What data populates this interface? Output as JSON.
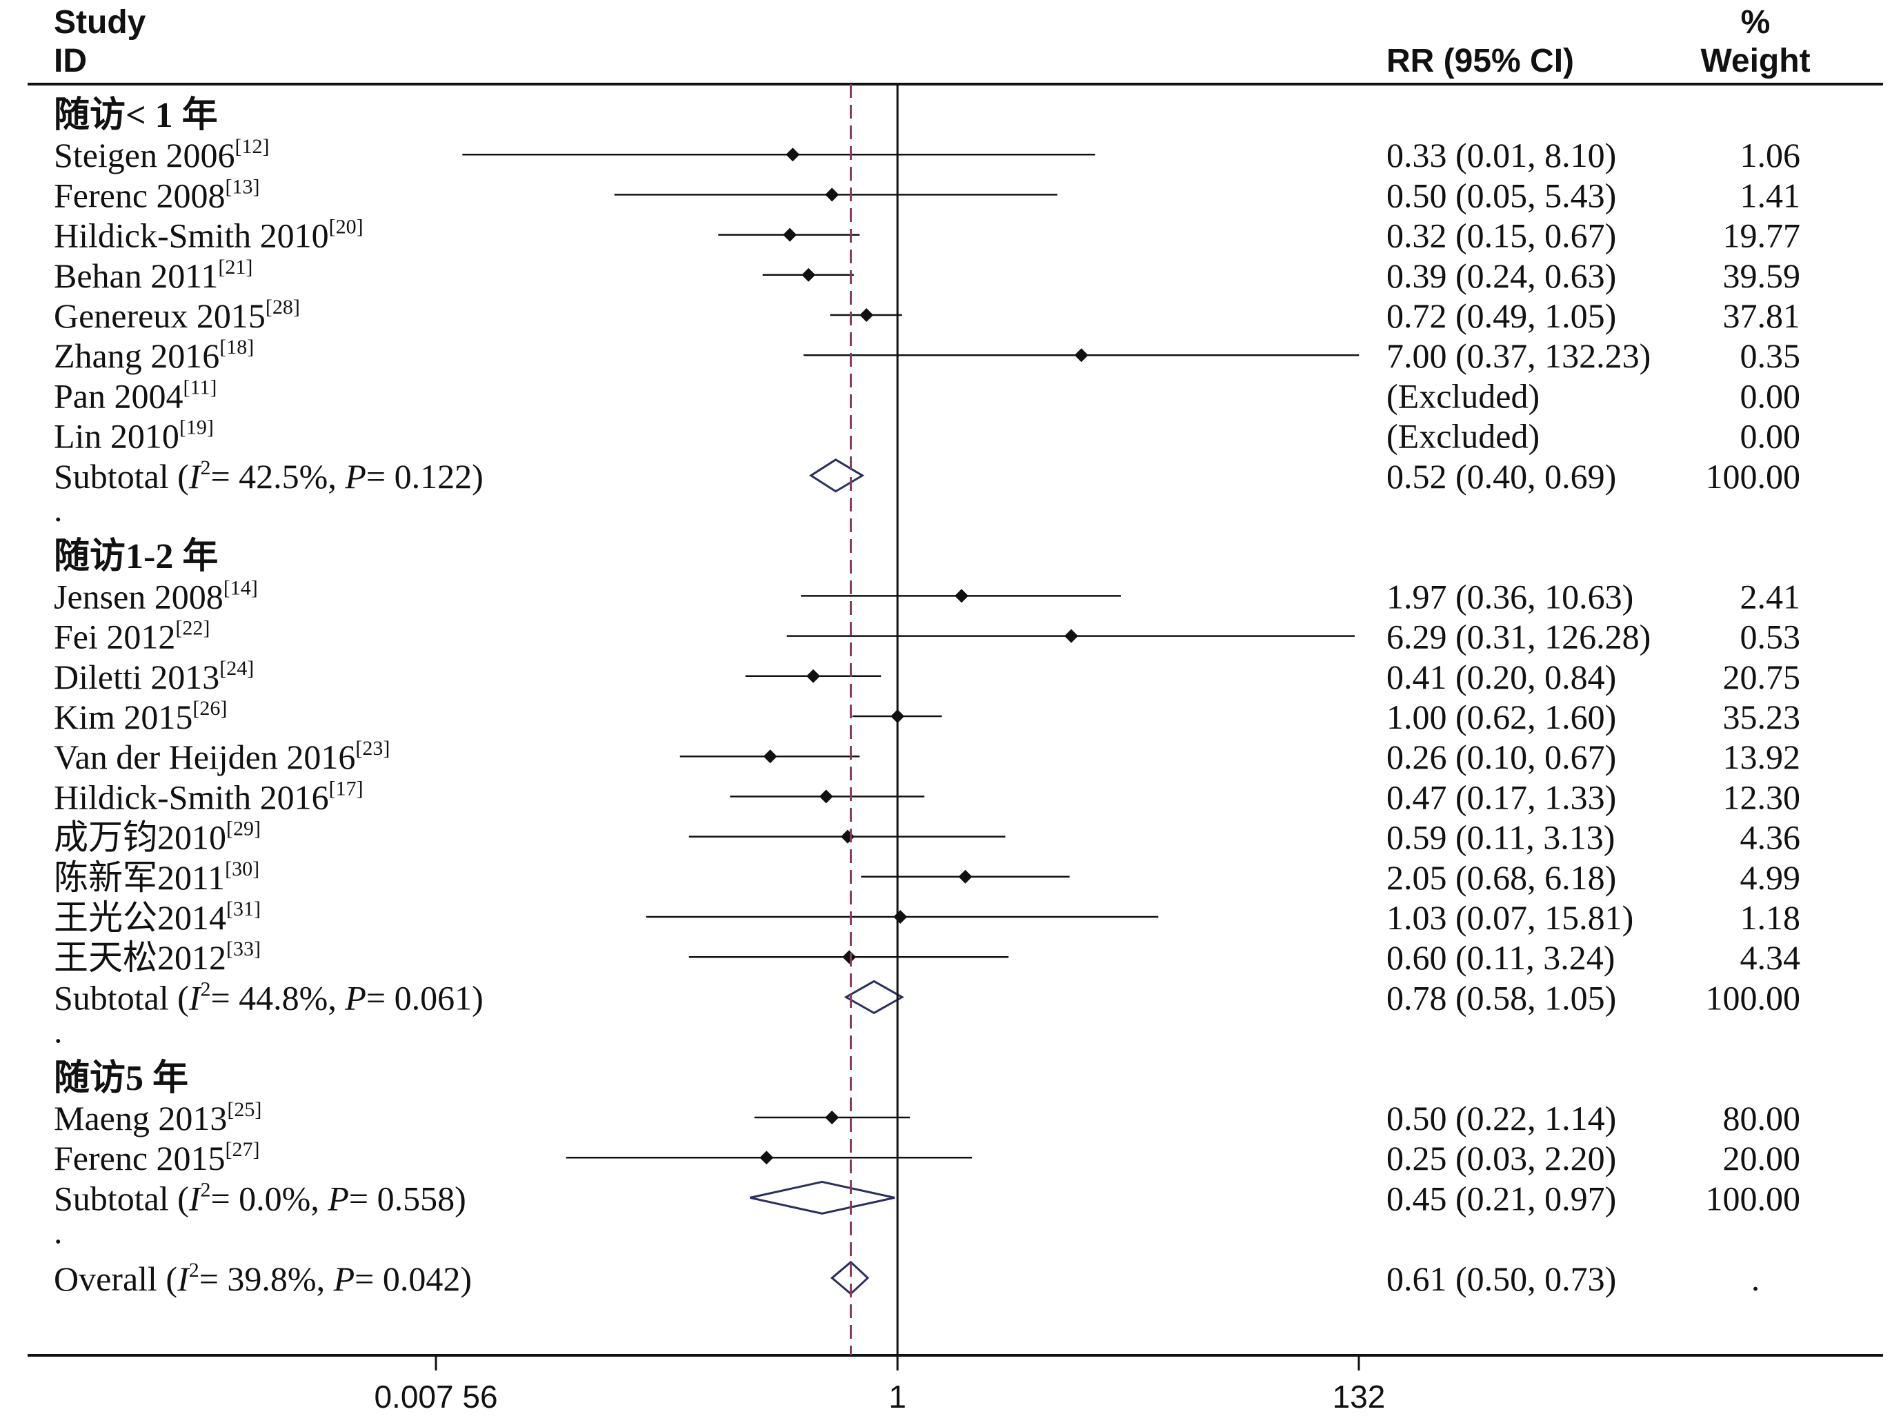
{
  "header": {
    "study_label": "Study",
    "id_label": "ID",
    "rr_label": "RR (95% CI)",
    "pct_label": "%",
    "weight_label": "Weight"
  },
  "axis": {
    "ticks": [
      {
        "value": 0.00756,
        "label": "0.007 56"
      },
      {
        "value": 1,
        "label": "1"
      },
      {
        "value": 132,
        "label": "132"
      }
    ]
  },
  "chart_data": {
    "type": "forest",
    "x_scale": "log",
    "xlim": [
      0.00756,
      132
    ],
    "null_line": 1,
    "overall_effect_line": 0.61,
    "groups": [
      {
        "title": "随访< 1 年",
        "studies": [
          {
            "name": "Steigen 2006",
            "ref": "[12]",
            "rr": 0.33,
            "lo": 0.01,
            "hi": 8.1,
            "ci_text": "0.33 (0.01, 8.10)",
            "weight": "1.06"
          },
          {
            "name": "Ferenc 2008",
            "ref": "[13]",
            "rr": 0.5,
            "lo": 0.05,
            "hi": 5.43,
            "ci_text": "0.50 (0.05, 5.43)",
            "weight": "1.41"
          },
          {
            "name": "Hildick-Smith 2010",
            "ref": "[20]",
            "rr": 0.32,
            "lo": 0.15,
            "hi": 0.67,
            "ci_text": "0.32 (0.15, 0.67)",
            "weight": "19.77"
          },
          {
            "name": "Behan 2011",
            "ref": "[21]",
            "rr": 0.39,
            "lo": 0.24,
            "hi": 0.63,
            "ci_text": "0.39 (0.24, 0.63)",
            "weight": "39.59"
          },
          {
            "name": "Genereux 2015",
            "ref": "[28]",
            "rr": 0.72,
            "lo": 0.49,
            "hi": 1.05,
            "ci_text": "0.72 (0.49, 1.05)",
            "weight": "37.81"
          },
          {
            "name": "Zhang 2016",
            "ref": "[18]",
            "rr": 7.0,
            "lo": 0.37,
            "hi": 132.23,
            "ci_text": "7.00 (0.37, 132.23)",
            "weight": "0.35"
          },
          {
            "name": "Pan 2004",
            "ref": "[11]",
            "rr": null,
            "lo": null,
            "hi": null,
            "ci_text": "(Excluded)",
            "weight": "0.00"
          },
          {
            "name": "Lin 2010",
            "ref": "[19]",
            "rr": null,
            "lo": null,
            "hi": null,
            "ci_text": "(Excluded)",
            "weight": "0.00"
          }
        ],
        "subtotal": {
          "prefix": "Subtotal  (",
          "i2_sym": "I",
          "i2": "= 42.5%, ",
          "p_sym": "P",
          "p": "= 0.122)",
          "rr": 0.52,
          "lo": 0.4,
          "hi": 0.69,
          "ci_text": "0.52 (0.40, 0.69)",
          "weight": "100.00"
        }
      },
      {
        "title": "随访1-2 年",
        "studies": [
          {
            "name": "Jensen 2008",
            "ref": "[14]",
            "rr": 1.97,
            "lo": 0.36,
            "hi": 10.63,
            "ci_text": "1.97 (0.36, 10.63)",
            "weight": "2.41"
          },
          {
            "name": "Fei 2012",
            "ref": "[22]",
            "rr": 6.29,
            "lo": 0.31,
            "hi": 126.28,
            "ci_text": "6.29 (0.31, 126.28)",
            "weight": "0.53"
          },
          {
            "name": "Diletti 2013",
            "ref": "[24]",
            "rr": 0.41,
            "lo": 0.2,
            "hi": 0.84,
            "ci_text": "0.41 (0.20, 0.84)",
            "weight": "20.75"
          },
          {
            "name": "Kim 2015",
            "ref": "[26]",
            "rr": 1.0,
            "lo": 0.62,
            "hi": 1.6,
            "ci_text": "1.00 (0.62, 1.60)",
            "weight": "35.23"
          },
          {
            "name": "Van der Heijden 2016",
            "ref": "[23]",
            "rr": 0.26,
            "lo": 0.1,
            "hi": 0.67,
            "ci_text": "0.26 (0.10, 0.67)",
            "weight": "13.92"
          },
          {
            "name": "Hildick-Smith 2016",
            "ref": "[17]",
            "rr": 0.47,
            "lo": 0.17,
            "hi": 1.33,
            "ci_text": "0.47 (0.17, 1.33)",
            "weight": "12.30"
          },
          {
            "name": "成万钧2010",
            "ref": "[29]",
            "rr": 0.59,
            "lo": 0.11,
            "hi": 3.13,
            "ci_text": "0.59 (0.11, 3.13)",
            "weight": "4.36"
          },
          {
            "name": "陈新军2011",
            "ref": "[30]",
            "rr": 2.05,
            "lo": 0.68,
            "hi": 6.18,
            "ci_text": "2.05 (0.68, 6.18)",
            "weight": "4.99"
          },
          {
            "name": "王光公2014",
            "ref": "[31]",
            "rr": 1.03,
            "lo": 0.07,
            "hi": 15.81,
            "ci_text": "1.03 (0.07, 15.81)",
            "weight": "1.18"
          },
          {
            "name": "王天松2012",
            "ref": "[33]",
            "rr": 0.6,
            "lo": 0.11,
            "hi": 3.24,
            "ci_text": "0.60 (0.11, 3.24)",
            "weight": "4.34"
          }
        ],
        "subtotal": {
          "prefix": "Subtotal  (",
          "i2_sym": "I",
          "i2": "= 44.8%, ",
          "p_sym": "P",
          "p": "= 0.061)",
          "rr": 0.78,
          "lo": 0.58,
          "hi": 1.05,
          "ci_text": "0.78 (0.58, 1.05)",
          "weight": "100.00"
        }
      },
      {
        "title": "随访5 年",
        "studies": [
          {
            "name": "Maeng 2013",
            "ref": "[25]",
            "rr": 0.5,
            "lo": 0.22,
            "hi": 1.14,
            "ci_text": "0.50 (0.22, 1.14)",
            "weight": "80.00"
          },
          {
            "name": "Ferenc 2015",
            "ref": "[27]",
            "rr": 0.25,
            "lo": 0.03,
            "hi": 2.2,
            "ci_text": "0.25 (0.03, 2.20)",
            "weight": "20.00"
          }
        ],
        "subtotal": {
          "prefix": "Subtotal  (",
          "i2_sym": "I",
          "i2": "= 0.0%, ",
          "p_sym": "P",
          "p": "= 0.558)",
          "rr": 0.45,
          "lo": 0.21,
          "hi": 0.97,
          "ci_text": "0.45 (0.21, 0.97)",
          "weight": "100.00"
        }
      }
    ],
    "overall": {
      "prefix": "Overall  (",
      "i2_sym": "I",
      "i2": "= 39.8%, ",
      "p_sym": "P",
      "p": "= 0.042)",
      "rr": 0.61,
      "lo": 0.5,
      "hi": 0.73,
      "ci_text": "0.61 (0.50, 0.73)",
      "weight": "."
    },
    "spacer_mark": "."
  }
}
